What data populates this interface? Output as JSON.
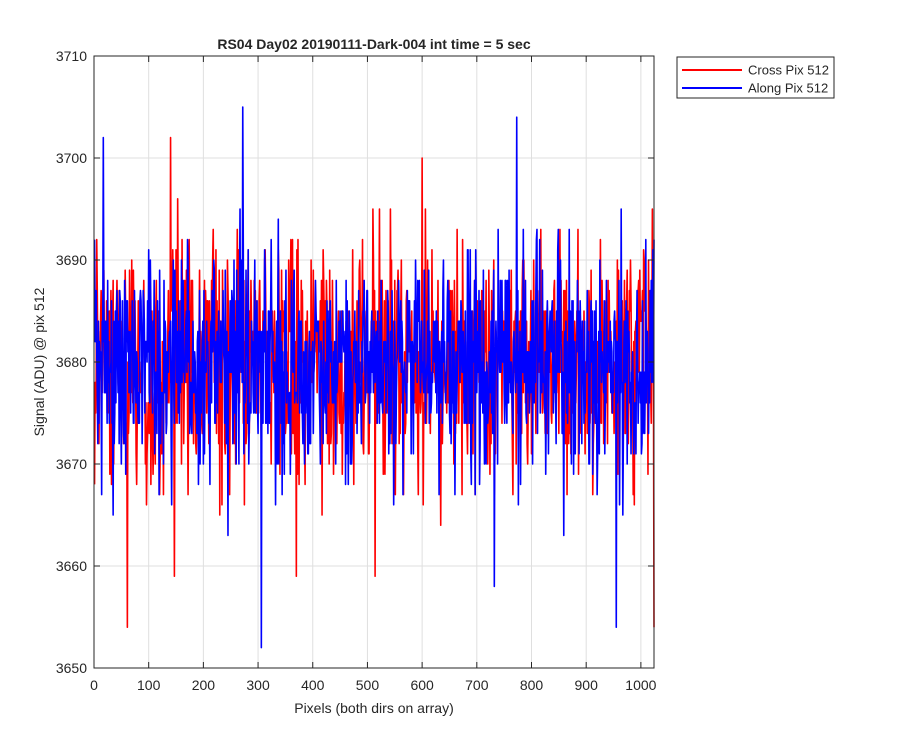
{
  "chart_data": {
    "type": "line",
    "title": "RS04 Day02 20190111-Dark-004 int time = 5 sec",
    "xlabel": "Pixels (both dirs on array)",
    "ylabel": "Signal (ADU) @ pix 512",
    "xlim": [
      0,
      1024
    ],
    "ylim": [
      3650,
      3710
    ],
    "x_ticks": [
      "0",
      "100",
      "200",
      "300",
      "400",
      "500",
      "600",
      "700",
      "800",
      "900",
      "1000"
    ],
    "y_ticks": [
      "3650",
      "3660",
      "3670",
      "3680",
      "3690",
      "3700",
      "3710"
    ],
    "grid": true,
    "legend_position": "outside-top-right",
    "x": {
      "start": 1,
      "end": 1024,
      "step": 1
    },
    "series": [
      {
        "name": "Cross Pix 512",
        "color": "#ff0000",
        "mean": 3680,
        "noise_sd": 6,
        "notable_points": [
          [
            1,
            3668
          ],
          [
            61,
            3654
          ],
          [
            140,
            3702
          ],
          [
            147,
            3659
          ],
          [
            370,
            3659
          ],
          [
            514,
            3659
          ],
          [
            600,
            3700
          ],
          [
            1024,
            3654
          ],
          [
            1021,
            3695
          ]
        ]
      },
      {
        "name": "Along Pix 512",
        "color": "#0000ff",
        "mean": 3680,
        "noise_sd": 6,
        "notable_points": [
          [
            1,
            3692
          ],
          [
            17,
            3702
          ],
          [
            272,
            3705
          ],
          [
            306,
            3652
          ],
          [
            732,
            3658
          ],
          [
            773,
            3704
          ],
          [
            955,
            3654
          ]
        ]
      }
    ]
  }
}
